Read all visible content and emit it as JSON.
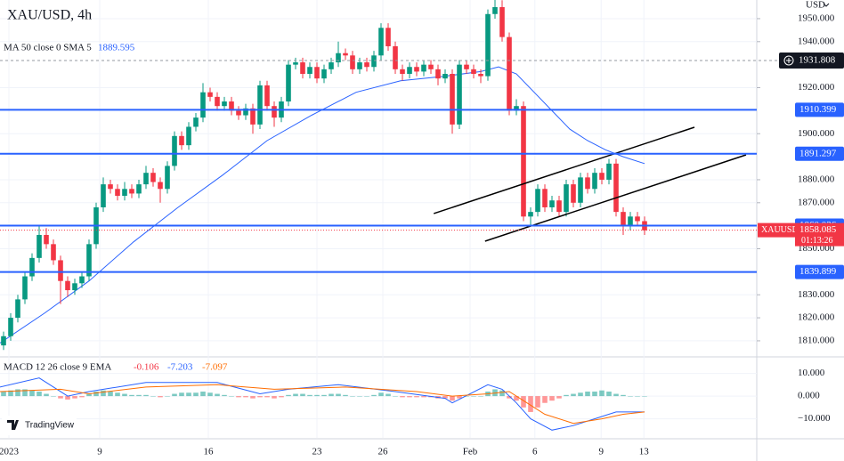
{
  "chart_data": {
    "type": "candlestick",
    "title": "XAU/USD, 4h",
    "currency": "USD",
    "xlim": [
      -0.5,
      105.75
    ],
    "xticks": [
      {
        "value": 0.75,
        "label": "2023"
      },
      {
        "value": 13.5,
        "label": "9"
      },
      {
        "value": 28.75,
        "label": "16"
      },
      {
        "value": 44,
        "label": "23"
      },
      {
        "value": 53.25,
        "label": "26"
      },
      {
        "value": 65.5,
        "label": "Feb"
      },
      {
        "value": 74.6,
        "label": "6"
      },
      {
        "value": 83.9,
        "label": "9"
      },
      {
        "value": 89.9,
        "label": "13"
      }
    ],
    "ylim": [
      1803.4,
      1958.1
    ],
    "yticks": [
      {
        "value": 1950,
        "label": "1950.000"
      },
      {
        "value": 1940,
        "label": "1940.000"
      },
      {
        "value": 1920,
        "label": "1920.000"
      },
      {
        "value": 1900,
        "label": "1900.000"
      },
      {
        "value": 1880,
        "label": "1880.000"
      },
      {
        "value": 1870,
        "label": "1870.000"
      },
      {
        "value": 1850,
        "label": "1850.000"
      },
      {
        "value": 1830,
        "label": "1830.000"
      },
      {
        "value": 1820,
        "label": "1820.000"
      },
      {
        "value": 1810,
        "label": "1810.000"
      }
    ],
    "series": [
      {
        "name": "XAUUSD",
        "up_color": "#089981",
        "down_color": "#f23645",
        "values": [
          [
            1808,
            1814,
            1806,
            1812
          ],
          [
            1812,
            1822,
            1810,
            1820
          ],
          [
            1820,
            1830,
            1818,
            1828
          ],
          [
            1828,
            1840,
            1826,
            1838
          ],
          [
            1838,
            1848,
            1836,
            1846
          ],
          [
            1846,
            1860,
            1844,
            1856
          ],
          [
            1856,
            1859,
            1850,
            1852
          ],
          [
            1852,
            1854,
            1843,
            1845
          ],
          [
            1845,
            1847,
            1826,
            1836
          ],
          [
            1836,
            1838,
            1829,
            1832
          ],
          [
            1832,
            1837,
            1830,
            1835
          ],
          [
            1835,
            1840,
            1833,
            1838
          ],
          [
            1838,
            1854,
            1836,
            1852
          ],
          [
            1852,
            1870,
            1850,
            1868
          ],
          [
            1868,
            1881,
            1866,
            1878
          ],
          [
            1878,
            1880,
            1874,
            1876
          ],
          [
            1876,
            1878,
            1871,
            1873
          ],
          [
            1873,
            1879,
            1871,
            1876
          ],
          [
            1876,
            1878,
            1872,
            1874
          ],
          [
            1874,
            1880,
            1872,
            1878
          ],
          [
            1878,
            1886,
            1876,
            1883
          ],
          [
            1883,
            1885,
            1877,
            1879
          ],
          [
            1879,
            1881,
            1870,
            1876
          ],
          [
            1876,
            1888,
            1874,
            1886
          ],
          [
            1886,
            1901,
            1884,
            1899
          ],
          [
            1899,
            1901,
            1893,
            1895
          ],
          [
            1895,
            1905,
            1893,
            1903
          ],
          [
            1903,
            1909,
            1901,
            1907
          ],
          [
            1907,
            1922,
            1905,
            1918
          ],
          [
            1918,
            1920,
            1914,
            1916
          ],
          [
            1916,
            1918,
            1910,
            1912
          ],
          [
            1912,
            1916,
            1910,
            1914
          ],
          [
            1914,
            1916,
            1908,
            1910
          ],
          [
            1910,
            1912,
            1906,
            1908
          ],
          [
            1908,
            1913,
            1906,
            1911
          ],
          [
            1911,
            1913,
            1900,
            1904
          ],
          [
            1904,
            1923,
            1902,
            1921
          ],
          [
            1921,
            1923,
            1910,
            1912
          ],
          [
            1912,
            1914,
            1903,
            1907
          ],
          [
            1907,
            1916,
            1905,
            1914
          ],
          [
            1914,
            1932,
            1912,
            1930
          ],
          [
            1930,
            1933,
            1928,
            1931
          ],
          [
            1931,
            1933,
            1924,
            1926
          ],
          [
            1926,
            1931,
            1924,
            1929
          ],
          [
            1929,
            1931,
            1922,
            1924
          ],
          [
            1924,
            1930,
            1922,
            1928
          ],
          [
            1928,
            1933,
            1926,
            1931
          ],
          [
            1931,
            1940,
            1929,
            1935
          ],
          [
            1935,
            1937,
            1932,
            1934
          ],
          [
            1934,
            1936,
            1926,
            1928
          ],
          [
            1928,
            1933,
            1926,
            1931
          ],
          [
            1931,
            1933,
            1927,
            1929
          ],
          [
            1929,
            1936,
            1927,
            1934
          ],
          [
            1934,
            1948,
            1932,
            1946
          ],
          [
            1946,
            1948,
            1936,
            1938
          ],
          [
            1938,
            1940,
            1926,
            1928
          ],
          [
            1928,
            1930,
            1923,
            1926
          ],
          [
            1926,
            1931,
            1924,
            1929
          ],
          [
            1929,
            1931,
            1925,
            1927
          ],
          [
            1927,
            1932,
            1925,
            1930
          ],
          [
            1930,
            1932,
            1926,
            1928
          ],
          [
            1928,
            1930,
            1921,
            1924
          ],
          [
            1924,
            1928,
            1922,
            1926
          ],
          [
            1926,
            1928,
            1900,
            1904
          ],
          [
            1904,
            1932,
            1902,
            1930
          ],
          [
            1930,
            1932,
            1926,
            1928
          ],
          [
            1928,
            1930,
            1924,
            1926
          ],
          [
            1926,
            1928,
            1922,
            1925
          ],
          [
            1925,
            1954,
            1923,
            1952
          ],
          [
            1952,
            1960,
            1950,
            1955
          ],
          [
            1955,
            1958,
            1940,
            1942
          ],
          [
            1942,
            1944,
            1908,
            1910
          ],
          [
            1910,
            1915,
            1908,
            1912
          ],
          [
            1912,
            1914,
            1862,
            1864
          ],
          [
            1864,
            1868,
            1860,
            1866
          ],
          [
            1866,
            1878,
            1864,
            1876
          ],
          [
            1876,
            1878,
            1866,
            1868
          ],
          [
            1868,
            1873,
            1866,
            1871
          ],
          [
            1871,
            1873,
            1864,
            1866
          ],
          [
            1866,
            1880,
            1864,
            1878
          ],
          [
            1878,
            1880,
            1868,
            1870
          ],
          [
            1870,
            1883,
            1868,
            1881
          ],
          [
            1881,
            1883,
            1874,
            1876
          ],
          [
            1876,
            1885,
            1874,
            1883
          ],
          [
            1883,
            1885,
            1878,
            1880
          ],
          [
            1880,
            1889,
            1878,
            1887
          ],
          [
            1887,
            1889,
            1864,
            1866
          ],
          [
            1866,
            1868,
            1856,
            1860
          ],
          [
            1860,
            1866,
            1858,
            1864
          ],
          [
            1864,
            1866,
            1860,
            1862
          ],
          [
            1862,
            1864,
            1856,
            1858
          ]
        ]
      }
    ],
    "ma": {
      "label": "MA 50 close 0 SMA 5",
      "value": 1889.595,
      "color": "#2962ff",
      "x": [
        -0.5,
        5.75,
        12,
        18.25,
        24.5,
        30.75,
        37,
        43.25,
        49.5,
        55.75,
        62,
        67,
        69.5,
        72,
        74.5,
        77,
        79.5,
        82,
        84.5,
        87,
        90
      ],
      "values": [
        1809,
        1822,
        1836,
        1853,
        1868,
        1882,
        1897,
        1908,
        1918,
        1923,
        1925,
        1927,
        1929,
        1926,
        1918,
        1910,
        1902,
        1897,
        1893,
        1890,
        1887
      ]
    },
    "levels": [
      {
        "value": 1910.399,
        "color": "#2962ff"
      },
      {
        "value": 1891.297,
        "color": "#2962ff"
      },
      {
        "value": 1860.036,
        "color": "#2962ff"
      },
      {
        "value": 1839.899,
        "color": "#2962ff"
      }
    ],
    "crosshair": {
      "value": 1931.808
    },
    "last_price": {
      "name": "XAUUSD",
      "value": 1858.085,
      "countdown": "01:13:26",
      "color": "#f23645"
    },
    "trendlines": [
      {
        "points": [
          [
            60.4,
            1865.3
          ],
          [
            97,
            1902.8
          ]
        ]
      },
      {
        "points": [
          [
            67.6,
            1853.3
          ],
          [
            104.25,
            1890.8
          ]
        ]
      }
    ],
    "macd": {
      "label": "MACD 12 26 close 9 EMA",
      "histogram_value": -0.106,
      "macd_value": -7.203,
      "signal_value": -7.097,
      "ylim": [
        -18.4,
        16.9
      ],
      "yticks": [
        {
          "value": 10,
          "label": "10.000"
        },
        {
          "value": 0,
          "label": "0.000"
        },
        {
          "value": -10,
          "label": "−10.000"
        }
      ],
      "histogram": [
        2,
        2.5,
        3,
        3,
        2.5,
        2,
        1,
        0,
        -1,
        -1.5,
        -1,
        -0.5,
        1,
        2,
        2.5,
        2,
        1.5,
        1,
        0.5,
        0.5,
        0.5,
        0,
        -0.5,
        0,
        1,
        1.5,
        1.5,
        1.5,
        2,
        1.5,
        1,
        0.5,
        0,
        -0.5,
        -0.5,
        -1,
        -0.5,
        -0.5,
        -1,
        -0.5,
        0.5,
        1,
        1,
        0.5,
        0.5,
        0.5,
        1,
        1,
        0.5,
        0,
        0,
        0,
        0.5,
        1.5,
        1,
        0,
        -0.5,
        -0.5,
        -0.5,
        -0.5,
        -0.5,
        -1,
        -1,
        -2,
        -1,
        0,
        0,
        0,
        2,
        3,
        2.5,
        -1,
        -2,
        -5,
        -7,
        -5,
        -3,
        -2,
        -1,
        0.5,
        1,
        1.5,
        2,
        2,
        2.5,
        2,
        1,
        0.5,
        0,
        0,
        0
      ],
      "macd_line": {
        "color": "#2962ff",
        "x": [
          -0.5,
          5,
          9,
          12,
          20,
          30,
          36,
          40,
          47,
          55,
          62,
          63,
          68,
          70,
          72,
          74,
          77,
          80,
          84,
          86,
          90
        ],
        "values": [
          4,
          8,
          0,
          2,
          6,
          6,
          1,
          3,
          5,
          2,
          -1,
          -3,
          5,
          3,
          -3,
          -10,
          -15,
          -13,
          -9,
          -7,
          -7
        ]
      },
      "signal_line": {
        "color": "#ff6d00",
        "x": [
          -0.5,
          8,
          12,
          20,
          30,
          38,
          48,
          58,
          63,
          68,
          71,
          73,
          76,
          80,
          84,
          87,
          90
        ],
        "values": [
          2,
          3,
          1,
          4,
          5,
          3,
          4,
          2,
          0,
          1,
          2,
          -2,
          -8,
          -12,
          -10,
          -8,
          -7
        ]
      }
    },
    "brand": "TradingView"
  }
}
